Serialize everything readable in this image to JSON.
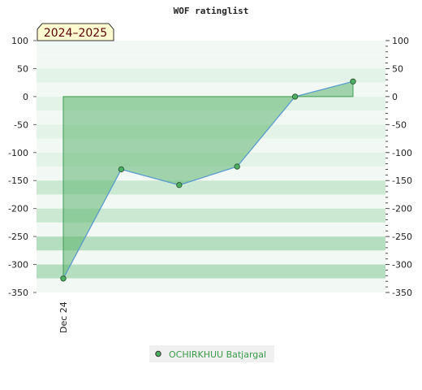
{
  "chart_data": {
    "type": "area",
    "title": "WOF ratinglist",
    "period_badge": "2024–2025",
    "xlabel": "",
    "ylabel": "",
    "ylim": [
      -350,
      100
    ],
    "y_ticks": [
      100,
      50,
      0,
      -50,
      -100,
      -150,
      -200,
      -250,
      -300,
      -350
    ],
    "x_tick_labels": [
      "Dec 24"
    ],
    "grid": "horizontal bands",
    "legend_position": "bottom-center",
    "series": [
      {
        "name": "OCHIRKHUU Batjargal",
        "values": [
          -325,
          -130,
          -158,
          -125,
          0,
          27
        ]
      }
    ],
    "colors": {
      "area_fill": "#5cb56f",
      "line": "#5b9bd5",
      "marker": "#4caf62",
      "legend_text": "#3a9a4a",
      "badge_fill": "#fffbd0",
      "band_dark": "#b5ddbf",
      "band_mid": "#cbe8d2",
      "band_light": "#e3f3e7",
      "band_pale": "#f2f9f4"
    }
  }
}
